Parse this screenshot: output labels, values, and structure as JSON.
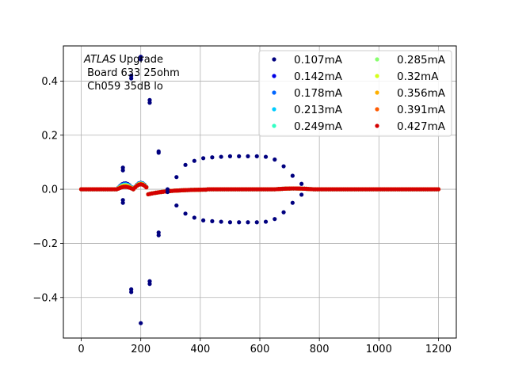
{
  "chart_data": {
    "type": "scatter",
    "title": "",
    "xlabel": "",
    "ylabel": "",
    "xlim": [
      -60,
      1260
    ],
    "ylim": [
      -0.55,
      0.53
    ],
    "xticks": [
      0,
      200,
      400,
      600,
      800,
      1000,
      1200
    ],
    "yticks": [
      -0.4,
      -0.2,
      0.0,
      0.2,
      0.4
    ],
    "xtick_labels": [
      "0",
      "200",
      "400",
      "600",
      "800",
      "1000",
      "1200"
    ],
    "ytick_labels": [
      "−0.4",
      "−0.2",
      "0.0",
      "0.2",
      "0.4"
    ],
    "grid": true,
    "legend_placement": "top-right",
    "legend_columns": 2,
    "annotation": {
      "italic_part": "ATLAS",
      "line1_rest": " Upgrade",
      "line2": " Board 633 25ohm",
      "line3": " Ch059 35dB lo"
    },
    "series": [
      {
        "name": "0.107mA",
        "color": "#00007f"
      },
      {
        "name": "0.142mA",
        "color": "#0000e6"
      },
      {
        "name": "0.178mA",
        "color": "#0066ff"
      },
      {
        "name": "0.213mA",
        "color": "#00ccff"
      },
      {
        "name": "0.249mA",
        "color": "#33ffc4"
      },
      {
        "name": "0.285mA",
        "color": "#88ff6e"
      },
      {
        "name": "0.32mA",
        "color": "#d4ff1a"
      },
      {
        "name": "0.356mA",
        "color": "#ffb000"
      },
      {
        "name": "0.391mA",
        "color": "#ff5a00"
      },
      {
        "name": "0.427mA",
        "color": "#d40000"
      }
    ],
    "outlier_points_0107": [
      {
        "x": 140,
        "y": 0.07
      },
      {
        "x": 140,
        "y": 0.08
      },
      {
        "x": 140,
        "y": -0.04
      },
      {
        "x": 140,
        "y": -0.05
      },
      {
        "x": 168,
        "y": 0.41
      },
      {
        "x": 168,
        "y": 0.42
      },
      {
        "x": 168,
        "y": -0.37
      },
      {
        "x": 168,
        "y": -0.38
      },
      {
        "x": 200,
        "y": 0.48
      },
      {
        "x": 200,
        "y": 0.49
      },
      {
        "x": 200,
        "y": -0.495
      },
      {
        "x": 230,
        "y": 0.32
      },
      {
        "x": 230,
        "y": 0.33
      },
      {
        "x": 230,
        "y": -0.34
      },
      {
        "x": 230,
        "y": -0.35
      },
      {
        "x": 260,
        "y": 0.14
      },
      {
        "x": 260,
        "y": 0.135
      },
      {
        "x": 260,
        "y": -0.16
      },
      {
        "x": 260,
        "y": -0.17
      },
      {
        "x": 290,
        "y": 0.0
      },
      {
        "x": 290,
        "y": -0.01
      },
      {
        "x": 320,
        "y": 0.045
      },
      {
        "x": 320,
        "y": -0.06
      },
      {
        "x": 350,
        "y": 0.09
      },
      {
        "x": 350,
        "y": -0.09
      },
      {
        "x": 380,
        "y": 0.105
      },
      {
        "x": 380,
        "y": -0.105
      },
      {
        "x": 410,
        "y": 0.115
      },
      {
        "x": 410,
        "y": -0.115
      },
      {
        "x": 440,
        "y": 0.118
      },
      {
        "x": 440,
        "y": -0.118
      },
      {
        "x": 470,
        "y": 0.12
      },
      {
        "x": 470,
        "y": -0.12
      },
      {
        "x": 500,
        "y": 0.122
      },
      {
        "x": 500,
        "y": -0.122
      },
      {
        "x": 530,
        "y": 0.122
      },
      {
        "x": 530,
        "y": -0.122
      },
      {
        "x": 560,
        "y": 0.122
      },
      {
        "x": 560,
        "y": -0.122
      },
      {
        "x": 590,
        "y": 0.122
      },
      {
        "x": 590,
        "y": -0.122
      },
      {
        "x": 620,
        "y": 0.12
      },
      {
        "x": 620,
        "y": -0.12
      },
      {
        "x": 650,
        "y": 0.11
      },
      {
        "x": 650,
        "y": -0.11
      },
      {
        "x": 680,
        "y": 0.085
      },
      {
        "x": 680,
        "y": -0.085
      },
      {
        "x": 710,
        "y": 0.05
      },
      {
        "x": 710,
        "y": -0.05
      },
      {
        "x": 740,
        "y": 0.02
      },
      {
        "x": 740,
        "y": -0.02
      }
    ]
  }
}
